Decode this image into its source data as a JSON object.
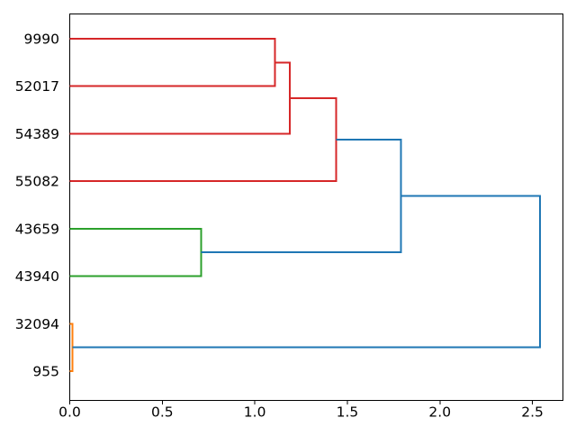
{
  "figure": {
    "background": "#ffffff",
    "plot_border_color": "#000000"
  },
  "chart_data": {
    "type": "dendrogram",
    "title": "",
    "xlabel": "",
    "ylabel": "",
    "grid": false,
    "legend": null,
    "orientation": "root-right-labels-left",
    "leaves": [
      "9990",
      "52017",
      "54389",
      "55082",
      "43659",
      "43940",
      "32094",
      "955"
    ],
    "merges": [
      {
        "id": "m1",
        "children": [
          "9990",
          "52017"
        ],
        "distance": 1.11,
        "color": "#d62728"
      },
      {
        "id": "m2",
        "children": [
          "m1",
          "54389"
        ],
        "distance": 1.19,
        "color": "#d62728"
      },
      {
        "id": "m3",
        "children": [
          "m2",
          "55082"
        ],
        "distance": 1.44,
        "color": "#d62728"
      },
      {
        "id": "m4",
        "children": [
          "43659",
          "43940"
        ],
        "distance": 0.71,
        "color": "#2ca02c"
      },
      {
        "id": "m5",
        "children": [
          "32094",
          "955"
        ],
        "distance": 0.015,
        "color": "#ff7f0e"
      },
      {
        "id": "m6",
        "children": [
          "m3",
          "m4"
        ],
        "distance": 1.79,
        "color": "#1f77b4"
      },
      {
        "id": "m7",
        "children": [
          "m6",
          "m5"
        ],
        "distance": 2.54,
        "color": "#1f77b4"
      }
    ],
    "cluster_colors": {
      "red": "#d62728",
      "green": "#2ca02c",
      "orange": "#ff7f0e",
      "blue": "#1f77b4"
    },
    "x_ticks": [
      "0.0",
      "0.5",
      "1.0",
      "1.5",
      "2.0",
      "2.5"
    ],
    "x_tick_values": [
      0,
      0.5,
      1.0,
      1.5,
      2.0,
      2.5
    ],
    "xlim": [
      0,
      2.665
    ]
  }
}
